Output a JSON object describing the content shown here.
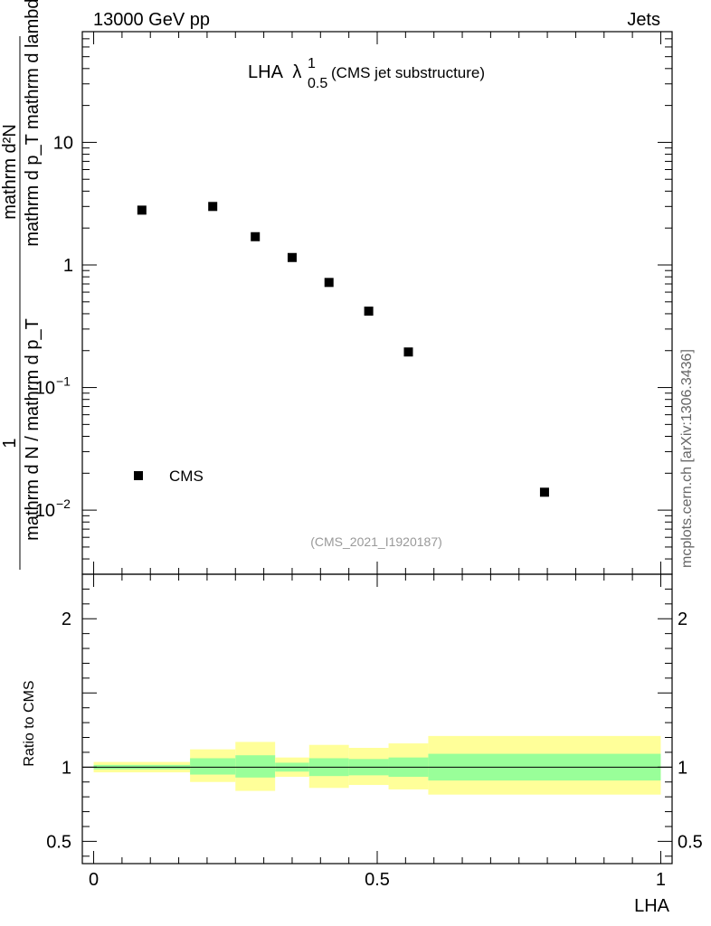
{
  "header": {
    "left_text": "13000 GeV pp",
    "right_text": "Jets"
  },
  "side_text": "mcplots.cern.ch [arXiv:1306.3436]",
  "colors": {
    "marker": "#000000",
    "band_inner": "#99ff99",
    "band_outer": "#ffff99",
    "axis": "#000000",
    "ref_text": "#999999",
    "side_text": "#666666"
  },
  "chart_data": [
    {
      "id": "main",
      "type": "scatter",
      "title_main": "LHA",
      "title_lambda": "λ",
      "title_sup": "1",
      "title_sub": "0.5",
      "title_suffix": "(CMS jet substructure)",
      "ylabel_num": "mathrm d²N",
      "ylabel_den": "mathrm d p_T mathrm d lambda",
      "ylabel_pre_num": "1",
      "ylabel_pre_den": "mathrm d N / mathrm d p_T",
      "yscale": "log",
      "ylim": [
        0.003,
        80
      ],
      "xlim": [
        -0.02,
        1.02
      ],
      "yticks": [
        {
          "value": 10,
          "label": "10"
        },
        {
          "value": 1,
          "label": "1"
        },
        {
          "value": 0.1,
          "label_base": "10",
          "label_exp": "−1"
        },
        {
          "value": 0.01,
          "label_base": "10",
          "label_exp": "−2"
        }
      ],
      "legend": {
        "label": "CMS",
        "position": "bottom-left"
      },
      "reference": "(CMS_2021_I1920187)",
      "series": [
        {
          "name": "CMS",
          "x": [
            0.085,
            0.21,
            0.285,
            0.35,
            0.415,
            0.485,
            0.555,
            0.795
          ],
          "y": [
            2.8,
            3.0,
            1.7,
            1.15,
            0.72,
            0.42,
            0.195,
            0.014
          ]
        }
      ]
    },
    {
      "id": "ratio",
      "type": "area",
      "ylabel": "Ratio to CMS",
      "xlabel": "LHA",
      "ylim": [
        0.35,
        2.3
      ],
      "xlim": [
        -0.02,
        1.02
      ],
      "yticks": [
        {
          "value": 2,
          "label": "2"
        },
        {
          "value": 1,
          "label": "1"
        },
        {
          "value": 0.5,
          "label": "0.5"
        }
      ],
      "xticks": [
        {
          "value": 0,
          "label": "0"
        },
        {
          "value": 0.5,
          "label": "0.5"
        },
        {
          "value": 1,
          "label": "1"
        }
      ],
      "reference_line": 1,
      "bins": [
        {
          "x0": 0.0,
          "x1": 0.17,
          "inner": [
            0.985,
            1.015
          ],
          "outer": [
            0.965,
            1.035
          ]
        },
        {
          "x0": 0.17,
          "x1": 0.25,
          "inner": [
            0.95,
            1.06
          ],
          "outer": [
            0.9,
            1.12
          ]
        },
        {
          "x0": 0.25,
          "x1": 0.32,
          "inner": [
            0.93,
            1.08
          ],
          "outer": [
            0.84,
            1.17
          ]
        },
        {
          "x0": 0.32,
          "x1": 0.38,
          "inner": [
            0.97,
            1.03
          ],
          "outer": [
            0.935,
            1.065
          ]
        },
        {
          "x0": 0.38,
          "x1": 0.45,
          "inner": [
            0.94,
            1.06
          ],
          "outer": [
            0.86,
            1.15
          ]
        },
        {
          "x0": 0.45,
          "x1": 0.52,
          "inner": [
            0.945,
            1.055
          ],
          "outer": [
            0.88,
            1.13
          ]
        },
        {
          "x0": 0.52,
          "x1": 0.59,
          "inner": [
            0.935,
            1.065
          ],
          "outer": [
            0.85,
            1.16
          ]
        },
        {
          "x0": 0.59,
          "x1": 1.0,
          "inner": [
            0.91,
            1.09
          ],
          "outer": [
            0.815,
            1.21
          ]
        }
      ]
    }
  ]
}
